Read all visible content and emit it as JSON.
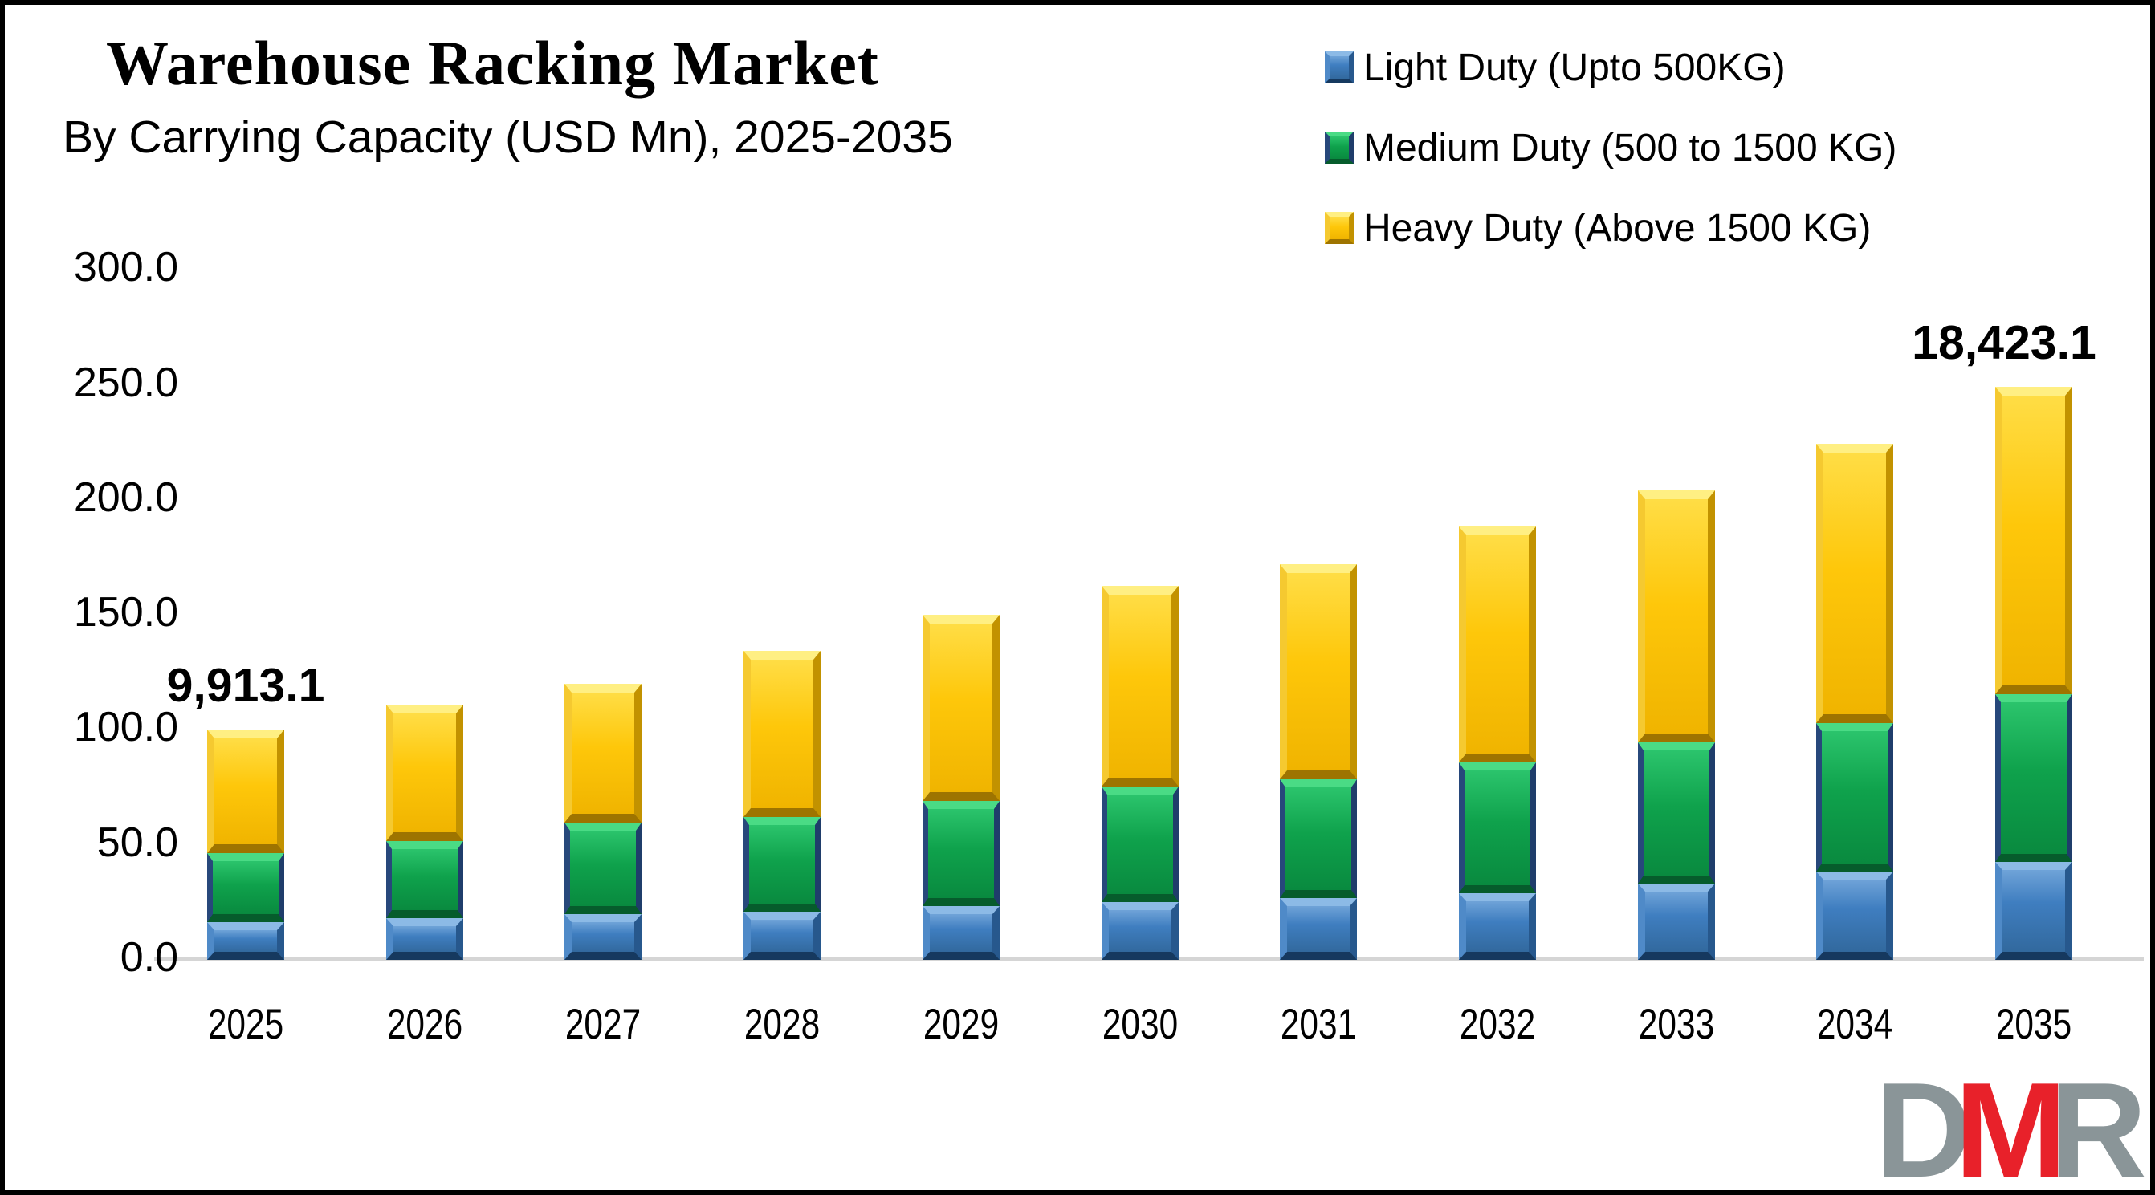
{
  "title": "Warehouse Racking Market",
  "subtitle": "By Carrying Capacity (USD Mn), 2025-2035",
  "legend": [
    {
      "key": "light-duty",
      "label": "Light Duty (Upto 500KG)",
      "color": "#3F7EC0"
    },
    {
      "key": "medium-duty",
      "label": "Medium Duty (500 to 1500 KG)",
      "color": "#0FA24C"
    },
    {
      "key": "heavy-duty",
      "label": "Heavy Duty (Above 1500 KG)",
      "color": "#FEC70A"
    }
  ],
  "chart_data": {
    "type": "bar",
    "stacked": true,
    "title": "Warehouse Racking Market",
    "subtitle": "By Carrying Capacity (USD Mn), 2025-2035",
    "categories": [
      "2025",
      "2026",
      "2027",
      "2028",
      "2029",
      "2030",
      "2031",
      "2032",
      "2033",
      "2034",
      "2035"
    ],
    "series": [
      {
        "name": "Light Duty (Upto 500KG)",
        "color": "#3F7EC0",
        "values": [
          16.5,
          18.0,
          20.0,
          21.0,
          23.5,
          25.0,
          27.0,
          29.0,
          33.0,
          38.5,
          42.5
        ]
      },
      {
        "name": "Medium Duty (500 to 1500 KG)",
        "color": "#0FA24C",
        "values": [
          30.0,
          33.5,
          39.5,
          41.0,
          45.5,
          50.5,
          51.5,
          57.0,
          61.5,
          64.5,
          73.0
        ]
      },
      {
        "name": "Heavy Duty (Above 1500 KG)",
        "color": "#FEC70A",
        "values": [
          53.5,
          59.5,
          60.5,
          72.5,
          81.0,
          87.0,
          93.5,
          102.5,
          109.5,
          121.5,
          133.5
        ]
      }
    ],
    "annotations": [
      {
        "index": 0,
        "text": "9,913.1"
      },
      {
        "index": 10,
        "text": "18,423.1"
      }
    ],
    "xlabel": "",
    "ylabel": "",
    "ylim": [
      0,
      300
    ],
    "yticks": [
      {
        "value": 300,
        "label": "300.0"
      },
      {
        "value": 250,
        "label": "250.0"
      },
      {
        "value": 200,
        "label": "200.0"
      },
      {
        "value": 150,
        "label": "150.0"
      },
      {
        "value": 100,
        "label": "100.0"
      },
      {
        "value": 50,
        "label": "50.0"
      },
      {
        "value": 0,
        "label": "0.0"
      }
    ],
    "grid": false,
    "legend_position": "top-right",
    "axis_line_color": "#D5D5D5"
  },
  "logo": {
    "letters": [
      {
        "char": "D",
        "color": "#8A9598"
      },
      {
        "char": "M",
        "color": "#E8212A"
      },
      {
        "char": "R",
        "color": "#8A9598"
      }
    ]
  }
}
